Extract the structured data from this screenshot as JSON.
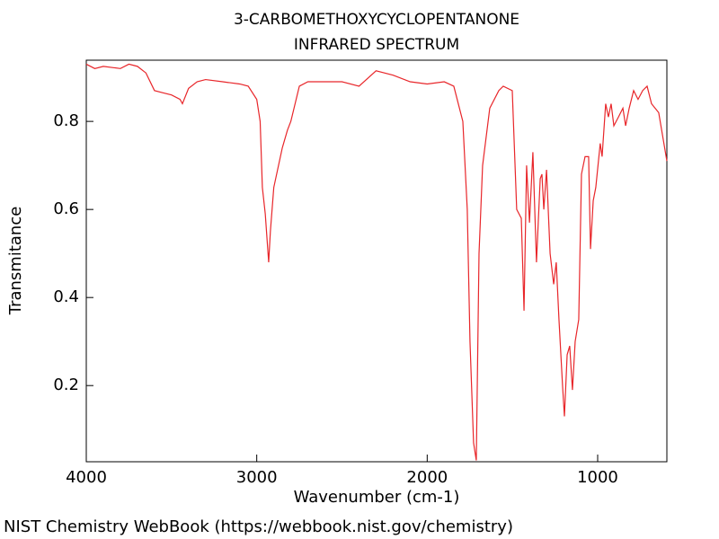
{
  "chart_data": {
    "type": "line",
    "title": "3-CARBOMETHOXYCYCLOPENTANONE",
    "subtitle": "INFRARED SPECTRUM",
    "x_label": "Wavenumber (cm-1)",
    "y_label": "Transmitance",
    "source": "NIST Chemistry WebBook (https://webbook.nist.gov/chemistry)",
    "xlim": [
      4000,
      594
    ],
    "ylim": [
      0.027,
      0.939
    ],
    "xticks": [
      4000,
      3000,
      2000,
      1000
    ],
    "yticks": [
      0.2,
      0.4,
      0.6,
      0.8
    ],
    "series": [
      {
        "name": "3-CARBOMETHOXYCYCLOPENTANONE",
        "color": "#e8262a",
        "x": [
          4000,
          3950,
          3900,
          3800,
          3750,
          3700,
          3650,
          3600,
          3550,
          3500,
          3450,
          3436,
          3400,
          3350,
          3300,
          3200,
          3100,
          3050,
          3000,
          2980,
          2967,
          2950,
          2930,
          2920,
          2900,
          2850,
          2820,
          2800,
          2750,
          2700,
          2500,
          2400,
          2300,
          2200,
          2100,
          2000,
          1900,
          1844,
          1791,
          1765,
          1749,
          1728,
          1712,
          1696,
          1675,
          1633,
          1580,
          1554,
          1501,
          1475,
          1448,
          1432,
          1417,
          1400,
          1380,
          1359,
          1337,
          1327,
          1316,
          1300,
          1279,
          1258,
          1243,
          1227,
          1206,
          1195,
          1179,
          1164,
          1148,
          1132,
          1111,
          1095,
          1074,
          1053,
          1042,
          1026,
          1011,
          985,
          974,
          953,
          937,
          921,
          905,
          878,
          852,
          836,
          815,
          789,
          763,
          736,
          710,
          684,
          642,
          594
        ],
        "values": [
          0.93,
          0.92,
          0.925,
          0.92,
          0.93,
          0.925,
          0.91,
          0.87,
          0.865,
          0.86,
          0.85,
          0.84,
          0.875,
          0.89,
          0.895,
          0.89,
          0.885,
          0.88,
          0.85,
          0.8,
          0.65,
          0.59,
          0.48,
          0.55,
          0.65,
          0.74,
          0.78,
          0.8,
          0.88,
          0.89,
          0.89,
          0.88,
          0.915,
          0.905,
          0.89,
          0.885,
          0.89,
          0.88,
          0.8,
          0.6,
          0.3,
          0.07,
          0.03,
          0.5,
          0.7,
          0.83,
          0.87,
          0.88,
          0.87,
          0.6,
          0.58,
          0.37,
          0.7,
          0.57,
          0.73,
          0.48,
          0.67,
          0.68,
          0.6,
          0.69,
          0.5,
          0.43,
          0.48,
          0.35,
          0.2,
          0.13,
          0.27,
          0.29,
          0.19,
          0.3,
          0.35,
          0.68,
          0.72,
          0.72,
          0.51,
          0.62,
          0.65,
          0.75,
          0.72,
          0.84,
          0.81,
          0.84,
          0.79,
          0.81,
          0.83,
          0.79,
          0.83,
          0.87,
          0.85,
          0.87,
          0.88,
          0.84,
          0.82,
          0.71
        ]
      }
    ]
  }
}
